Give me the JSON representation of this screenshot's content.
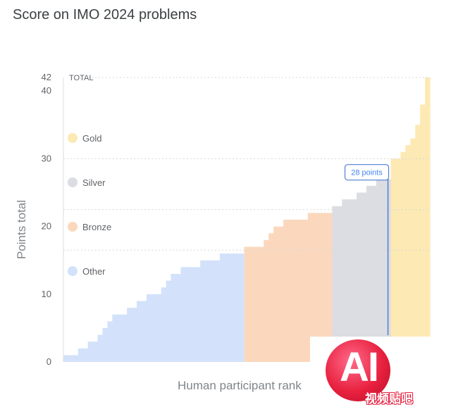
{
  "chart_data": {
    "type": "bar",
    "title": "Score on IMO 2024 problems",
    "xlabel": "Human participant rank",
    "ylabel": "Points total",
    "ylim": [
      0,
      42
    ],
    "yticks": [
      0,
      10,
      20,
      30,
      40,
      42
    ],
    "total_label": "TOTAL",
    "legend_position": "left",
    "categories": [
      {
        "name": "Gold",
        "color": "#fde9b4"
      },
      {
        "name": "Silver",
        "color": "#dcdde2"
      },
      {
        "name": "Bronze",
        "color": "#fbd8bd"
      },
      {
        "name": "Other",
        "color": "#d3e2fa"
      }
    ],
    "grid": true,
    "reference_lines": [
      22.5,
      16.5,
      30
    ],
    "steps": [
      {
        "category": "Other",
        "values": [
          1,
          1,
          1,
          2,
          2,
          3,
          3,
          4,
          5,
          6,
          7,
          7,
          7,
          8,
          8,
          9,
          9,
          10,
          10,
          10,
          11,
          12,
          13,
          13,
          14,
          14,
          14,
          14,
          15,
          15,
          15,
          15,
          16,
          16,
          16,
          16,
          16
        ]
      },
      {
        "category": "Bronze",
        "values": [
          17,
          17,
          17,
          17,
          18,
          19,
          20,
          20,
          21,
          21,
          21,
          21,
          21,
          22,
          22,
          22,
          22,
          22
        ]
      },
      {
        "category": "Silver",
        "values": [
          23,
          23,
          24,
          24,
          24,
          25,
          25,
          26,
          26,
          27,
          27,
          27
        ]
      },
      {
        "category": "Gold",
        "values": [
          30,
          30,
          31,
          32,
          33,
          35,
          38,
          42
        ]
      }
    ],
    "annotation": {
      "label": "28 points",
      "value": 28
    }
  }
}
